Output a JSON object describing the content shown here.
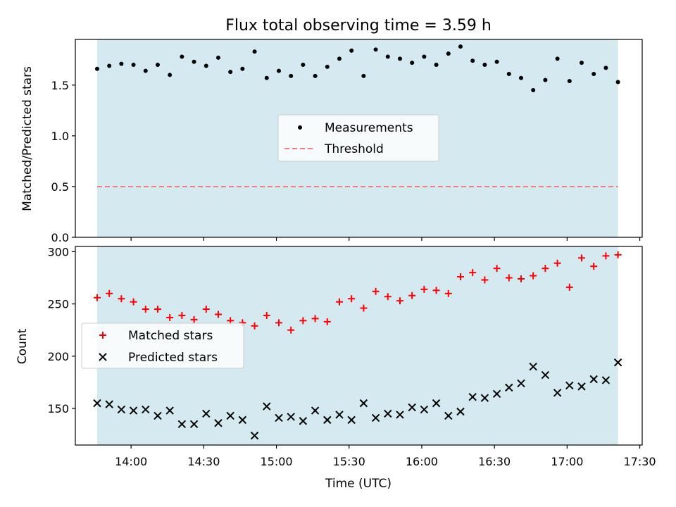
{
  "chart_data": [
    {
      "type": "scatter",
      "title": "Flux total observing time = 3.59 h",
      "xlabel": "",
      "ylabel": "Matched/Predicted stars",
      "ylim": [
        0,
        1.95
      ],
      "yticks": [
        0.0,
        0.5,
        1.0,
        1.5
      ],
      "ytick_labels": [
        "0.0",
        "0.5",
        "1.0",
        "1.5"
      ],
      "shaded_span": [
        "13:46",
        "17:21"
      ],
      "shade_color": "#d4eaf0",
      "legend_position": "center",
      "series": [
        {
          "name": "Measurements",
          "marker": "dot",
          "color": "#000000",
          "points": [
            [
              "13:46",
              1.66
            ],
            [
              "13:51",
              1.69
            ],
            [
              "13:56",
              1.71
            ],
            [
              "14:01",
              1.7
            ],
            [
              "14:06",
              1.64
            ],
            [
              "14:11",
              1.7
            ],
            [
              "14:16",
              1.6
            ],
            [
              "14:21",
              1.78
            ],
            [
              "14:26",
              1.73
            ],
            [
              "14:31",
              1.69
            ],
            [
              "14:36",
              1.77
            ],
            [
              "14:41",
              1.63
            ],
            [
              "14:46",
              1.66
            ],
            [
              "14:51",
              1.83
            ],
            [
              "14:56",
              1.57
            ],
            [
              "15:01",
              1.64
            ],
            [
              "15:06",
              1.59
            ],
            [
              "15:11",
              1.7
            ],
            [
              "15:16",
              1.59
            ],
            [
              "15:21",
              1.68
            ],
            [
              "15:26",
              1.76
            ],
            [
              "15:31",
              1.84
            ],
            [
              "15:36",
              1.59
            ],
            [
              "15:41",
              1.85
            ],
            [
              "15:46",
              1.78
            ],
            [
              "15:51",
              1.76
            ],
            [
              "15:56",
              1.72
            ],
            [
              "16:01",
              1.78
            ],
            [
              "16:06",
              1.7
            ],
            [
              "16:11",
              1.81
            ],
            [
              "16:16",
              1.88
            ],
            [
              "16:21",
              1.74
            ],
            [
              "16:26",
              1.7
            ],
            [
              "16:31",
              1.73
            ],
            [
              "16:36",
              1.61
            ],
            [
              "16:41",
              1.57
            ],
            [
              "16:46",
              1.45
            ],
            [
              "16:51",
              1.55
            ],
            [
              "16:56",
              1.76
            ],
            [
              "17:01",
              1.54
            ],
            [
              "17:06",
              1.72
            ],
            [
              "17:11",
              1.61
            ],
            [
              "17:16",
              1.67
            ],
            [
              "17:21",
              1.53
            ]
          ]
        },
        {
          "name": "Threshold",
          "style": "dashed",
          "color": "#f08080",
          "points": [
            [
              "13:46",
              0.5
            ],
            [
              "17:21",
              0.5
            ]
          ]
        }
      ]
    },
    {
      "type": "scatter",
      "title": "",
      "xlabel": "Time (UTC)",
      "ylabel": "Count",
      "ylim": [
        115,
        305
      ],
      "yticks": [
        150,
        200,
        250,
        300
      ],
      "ytick_labels": [
        "150",
        "200",
        "250",
        "300"
      ],
      "xlim": [
        "13:37",
        "17:31"
      ],
      "xticks": [
        "14:00",
        "14:30",
        "15:00",
        "15:30",
        "16:00",
        "16:30",
        "17:00",
        "17:30"
      ],
      "xtick_labels": [
        "14:00",
        "14:30",
        "15:00",
        "15:30",
        "16:00",
        "16:30",
        "17:00",
        "17:30"
      ],
      "shaded_span": [
        "13:46",
        "17:21"
      ],
      "shade_color": "#d4eaf0",
      "legend_position": "center-left",
      "series": [
        {
          "name": "Matched stars",
          "marker": "plus",
          "color": "#ff0000",
          "points": [
            [
              "13:46",
              256
            ],
            [
              "13:51",
              260
            ],
            [
              "13:56",
              255
            ],
            [
              "14:01",
              252
            ],
            [
              "14:06",
              245
            ],
            [
              "14:11",
              245
            ],
            [
              "14:16",
              237
            ],
            [
              "14:21",
              239
            ],
            [
              "14:26",
              235
            ],
            [
              "14:31",
              245
            ],
            [
              "14:36",
              240
            ],
            [
              "14:41",
              234
            ],
            [
              "14:46",
              232
            ],
            [
              "14:51",
              229
            ],
            [
              "14:56",
              239
            ],
            [
              "15:01",
              232
            ],
            [
              "15:06",
              225
            ],
            [
              "15:11",
              234
            ],
            [
              "15:16",
              236
            ],
            [
              "15:21",
              233
            ],
            [
              "15:26",
              252
            ],
            [
              "15:31",
              255
            ],
            [
              "15:36",
              246
            ],
            [
              "15:41",
              262
            ],
            [
              "15:46",
              257
            ],
            [
              "15:51",
              253
            ],
            [
              "15:56",
              258
            ],
            [
              "16:01",
              264
            ],
            [
              "16:06",
              263
            ],
            [
              "16:11",
              260
            ],
            [
              "16:16",
              276
            ],
            [
              "16:21",
              280
            ],
            [
              "16:26",
              273
            ],
            [
              "16:31",
              284
            ],
            [
              "16:36",
              275
            ],
            [
              "16:41",
              274
            ],
            [
              "16:46",
              277
            ],
            [
              "16:51",
              284
            ],
            [
              "16:56",
              289
            ],
            [
              "17:01",
              266
            ],
            [
              "17:06",
              294
            ],
            [
              "17:11",
              286
            ],
            [
              "17:16",
              296
            ],
            [
              "17:21",
              297
            ]
          ]
        },
        {
          "name": "Predicted stars",
          "marker": "x",
          "color": "#000000",
          "points": [
            [
              "13:46",
              155
            ],
            [
              "13:51",
              154
            ],
            [
              "13:56",
              149
            ],
            [
              "14:01",
              148
            ],
            [
              "14:06",
              149
            ],
            [
              "14:11",
              143
            ],
            [
              "14:16",
              148
            ],
            [
              "14:21",
              135
            ],
            [
              "14:26",
              135
            ],
            [
              "14:31",
              145
            ],
            [
              "14:36",
              136
            ],
            [
              "14:41",
              143
            ],
            [
              "14:46",
              139
            ],
            [
              "14:51",
              124
            ],
            [
              "14:56",
              152
            ],
            [
              "15:01",
              141
            ],
            [
              "15:06",
              142
            ],
            [
              "15:11",
              138
            ],
            [
              "15:16",
              148
            ],
            [
              "15:21",
              139
            ],
            [
              "15:26",
              144
            ],
            [
              "15:31",
              139
            ],
            [
              "15:36",
              155
            ],
            [
              "15:41",
              141
            ],
            [
              "15:46",
              145
            ],
            [
              "15:51",
              144
            ],
            [
              "15:56",
              151
            ],
            [
              "16:01",
              149
            ],
            [
              "16:06",
              155
            ],
            [
              "16:11",
              143
            ],
            [
              "16:16",
              147
            ],
            [
              "16:21",
              161
            ],
            [
              "16:26",
              160
            ],
            [
              "16:31",
              164
            ],
            [
              "16:36",
              170
            ],
            [
              "16:41",
              174
            ],
            [
              "16:46",
              190
            ],
            [
              "16:51",
              182
            ],
            [
              "16:56",
              165
            ],
            [
              "17:01",
              172
            ],
            [
              "17:06",
              171
            ],
            [
              "17:11",
              178
            ],
            [
              "17:16",
              177
            ],
            [
              "17:21",
              194
            ]
          ]
        }
      ]
    }
  ]
}
